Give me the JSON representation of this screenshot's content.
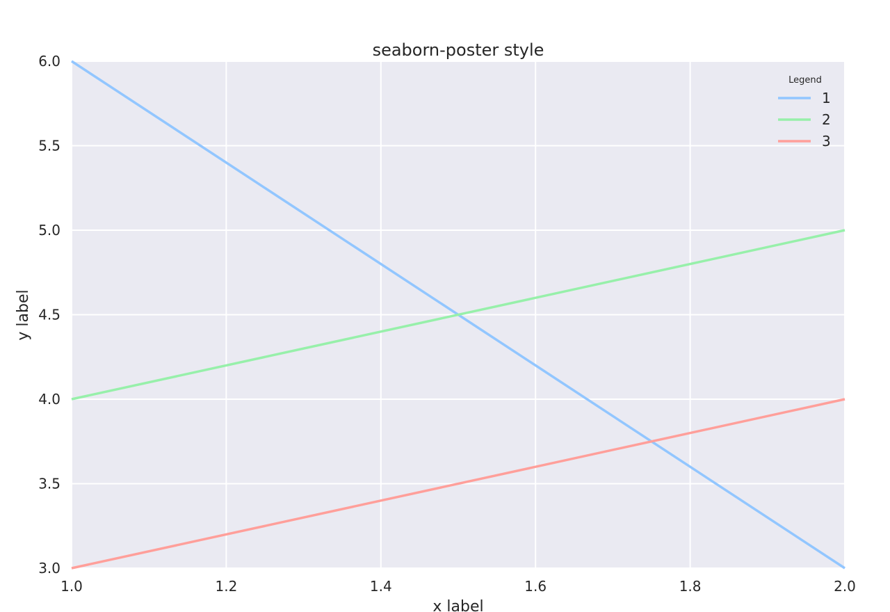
{
  "chart_data": {
    "type": "line",
    "title": "seaborn-poster style",
    "xlabel": "x label",
    "ylabel": "y label",
    "xlim": [
      1.0,
      2.0
    ],
    "ylim": [
      3.0,
      6.0
    ],
    "xticks": [
      "1.0",
      "1.2",
      "1.4",
      "1.6",
      "1.8",
      "2.0"
    ],
    "yticks": [
      "3.0",
      "3.5",
      "4.0",
      "4.5",
      "5.0",
      "5.5",
      "6.0"
    ],
    "grid": true,
    "legend": {
      "title": "Legend",
      "placement": "top-right"
    },
    "x": [
      1,
      2
    ],
    "series": [
      {
        "name": "1",
        "values": [
          6,
          3
        ],
        "color": "#92c6ff"
      },
      {
        "name": "2",
        "values": [
          4,
          5
        ],
        "color": "#97f0aa"
      },
      {
        "name": "3",
        "values": [
          3,
          4
        ],
        "color": "#ff9f9a"
      }
    ],
    "colors": {
      "plot_background": "#eaeaf2",
      "grid": "#ffffff",
      "text": "#262626"
    }
  }
}
